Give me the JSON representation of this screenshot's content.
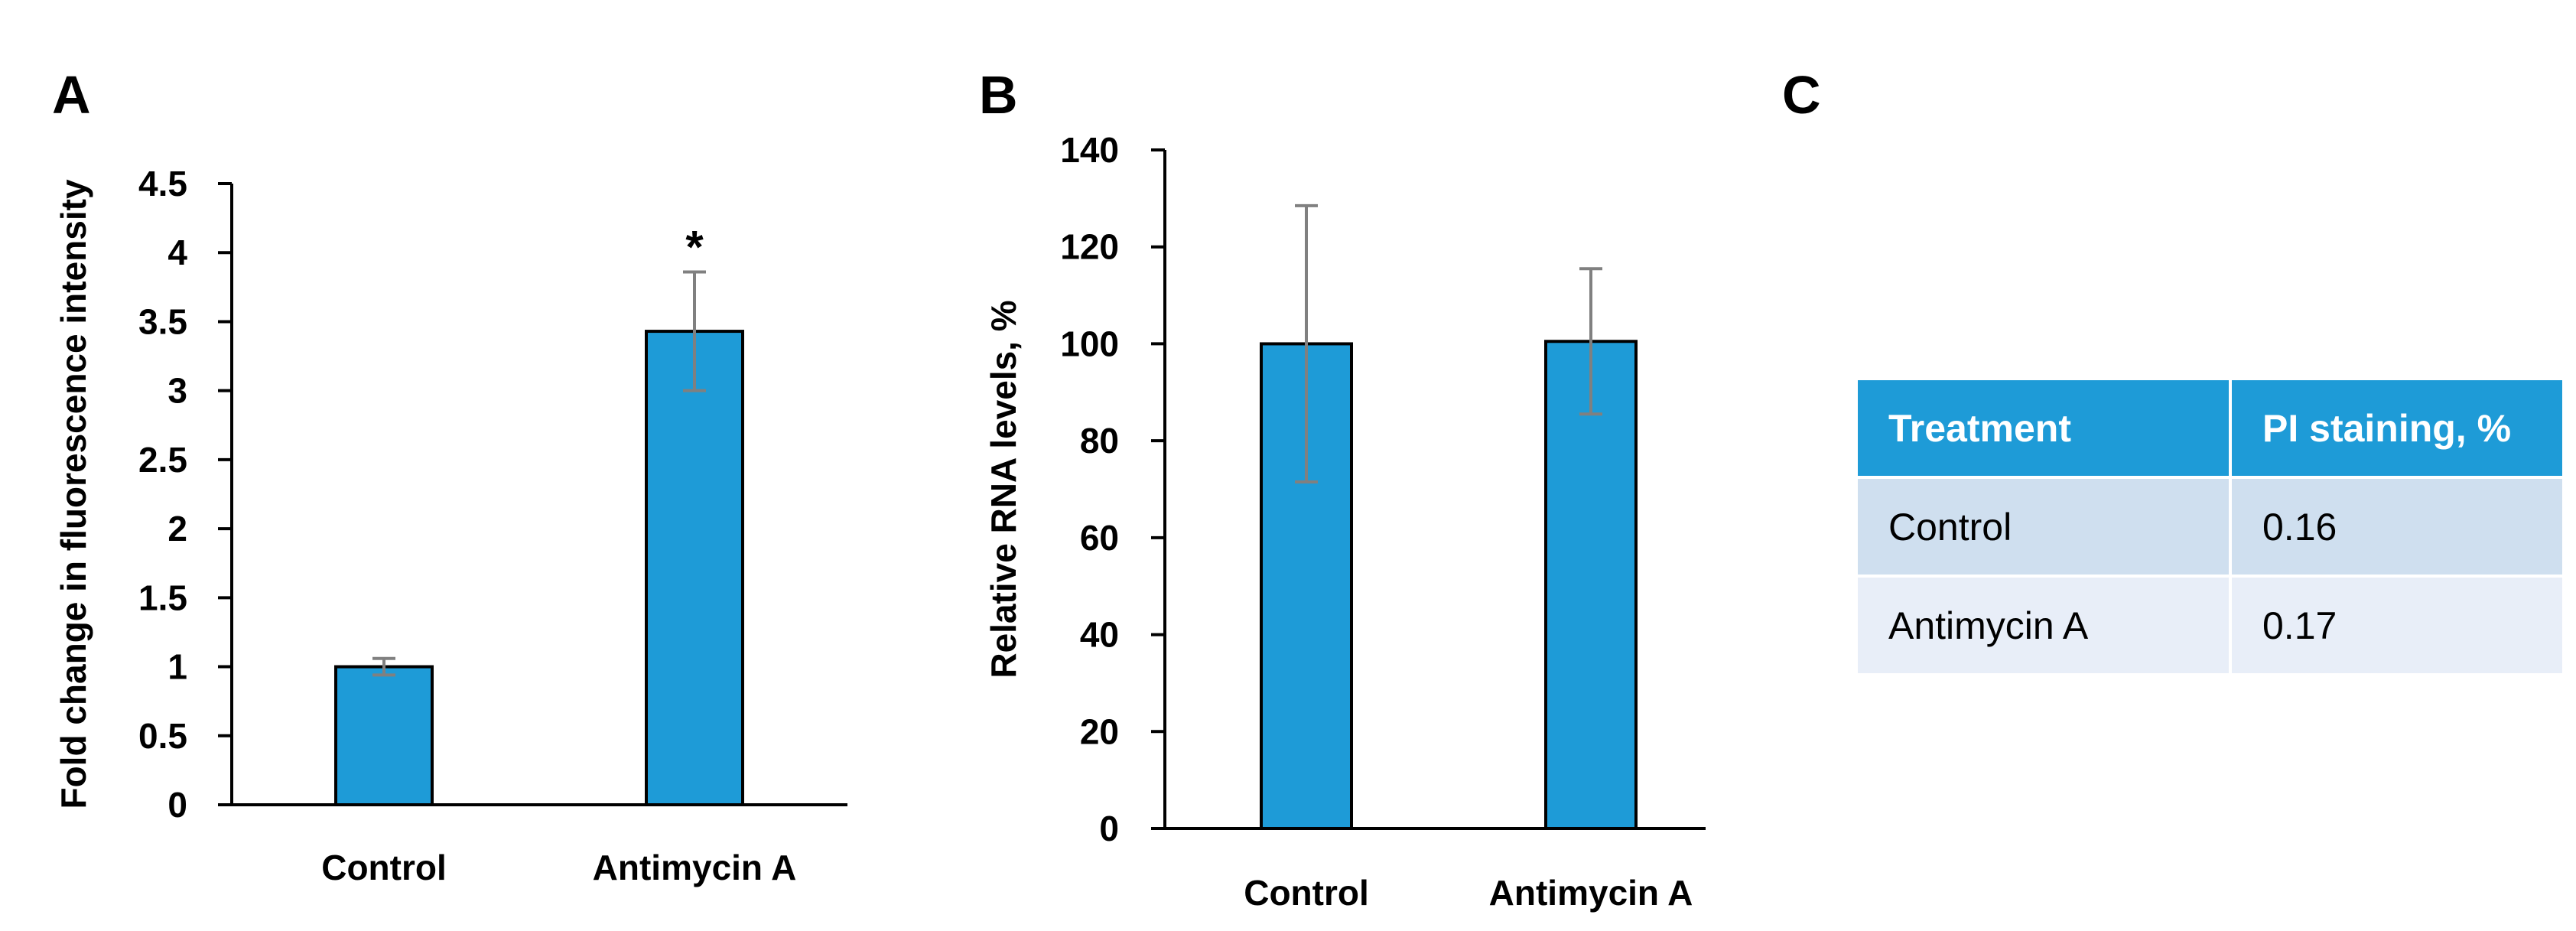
{
  "chart_data": [
    {
      "panel": "A",
      "type": "bar",
      "categories": [
        "Control",
        "Antimycin A"
      ],
      "values": [
        1.0,
        3.43
      ],
      "errors": [
        0.06,
        0.43
      ],
      "annotations": [
        "",
        "*"
      ],
      "ylabel": "Fold change in fluorescence intensity",
      "xlabel": "",
      "ylim": [
        0,
        4.5
      ],
      "yticks": [
        "0",
        "0.5",
        "1",
        "1.5",
        "2",
        "2.5",
        "3",
        "3.5",
        "4",
        "4.5"
      ],
      "grid": false
    },
    {
      "panel": "B",
      "type": "bar",
      "categories": [
        "Control",
        "Antimycin A"
      ],
      "values": [
        100,
        100.5
      ],
      "errors": [
        28.5,
        15
      ],
      "annotations": [
        "",
        ""
      ],
      "ylabel": "Relative RNA levels, %",
      "xlabel": "",
      "ylim": [
        0,
        140
      ],
      "yticks": [
        "0",
        "20",
        "40",
        "60",
        "80",
        "100",
        "120",
        "140"
      ],
      "grid": false
    }
  ],
  "panel_c": {
    "label": "C",
    "headers": [
      "Treatment",
      "PI staining, %"
    ],
    "rows": [
      [
        "Control",
        "0.16"
      ],
      [
        "Antimycin A",
        "0.17"
      ]
    ]
  },
  "colors": {
    "bar": "#1e9bd7",
    "error": "#808080",
    "header_bg": "#1e9bd7"
  }
}
